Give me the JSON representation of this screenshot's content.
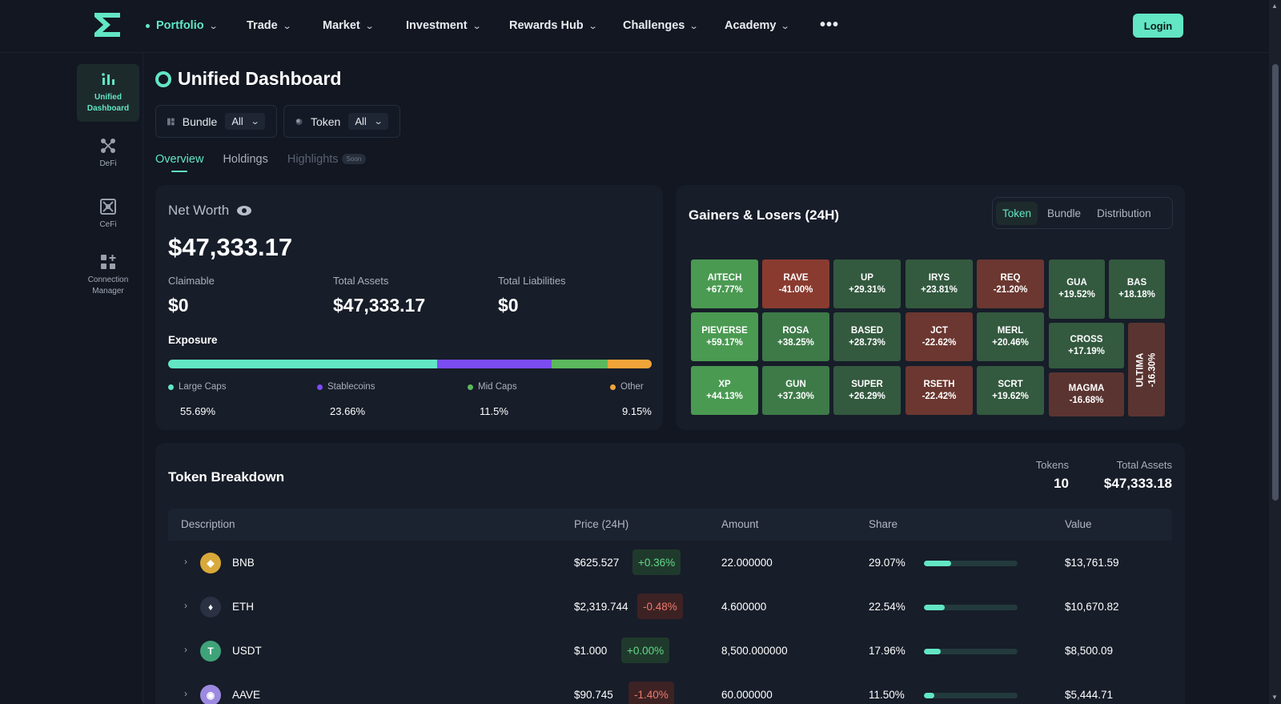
{
  "nav": {
    "items": [
      {
        "label": "Portfolio"
      },
      {
        "label": "Trade"
      },
      {
        "label": "Market"
      },
      {
        "label": "Investment"
      },
      {
        "label": "Rewards Hub"
      },
      {
        "label": "Challenges"
      },
      {
        "label": "Academy"
      }
    ],
    "more": "•••",
    "login": "Login",
    "chevron": "⌄"
  },
  "sidebar": {
    "items": [
      {
        "label": "Unified Dashboard",
        "icon": "bar-chart-icon"
      },
      {
        "label": "DeFi",
        "icon": "nodes-icon"
      },
      {
        "label": "CeFi",
        "icon": "exchange-icon"
      },
      {
        "label": "Connection Manager",
        "icon": "connection-icon"
      }
    ]
  },
  "page": {
    "title": "Unified Dashboard",
    "filters": [
      {
        "label": "Bundle",
        "value": "All"
      },
      {
        "label": "Token",
        "value": "All"
      }
    ],
    "tabs": [
      {
        "label": "Overview"
      },
      {
        "label": "Holdings"
      },
      {
        "label": "Highlights",
        "badge": "Soon"
      }
    ]
  },
  "networth": {
    "title": "Net Worth",
    "value": "$47,333.17",
    "claimable_label": "Claimable",
    "claimable": "$0",
    "assets_label": "Total Assets",
    "assets": "$47,333.17",
    "liabilities_label": "Total Liabilities",
    "liabilities": "$0",
    "exposure_title": "Exposure",
    "exposure": [
      {
        "label": "Large Caps",
        "pct": "55.69%",
        "value": 55.69,
        "color": "#62e6c4"
      },
      {
        "label": "Stablecoins",
        "pct": "23.66%",
        "value": 23.66,
        "color": "#7b4cf2"
      },
      {
        "label": "Mid Caps",
        "pct": "11.5%",
        "value": 11.5,
        "color": "#5cb85c"
      },
      {
        "label": "Other",
        "pct": "9.15%",
        "value": 9.15,
        "color": "#f0a43a"
      }
    ]
  },
  "gainers": {
    "title": "Gainers & Losers (24H)",
    "tabs": [
      "Token",
      "Bundle",
      "Distribution"
    ],
    "tiles": [
      {
        "name": "AITECH",
        "change": "+67.77%"
      },
      {
        "name": "RAVE",
        "change": "-41.00%"
      },
      {
        "name": "UP",
        "change": "+29.31%"
      },
      {
        "name": "IRYS",
        "change": "+23.81%"
      },
      {
        "name": "REQ",
        "change": "-21.20%"
      },
      {
        "name": "GUA",
        "change": "+19.52%"
      },
      {
        "name": "BAS",
        "change": "+18.18%"
      },
      {
        "name": "PIEVERSE",
        "change": "+59.17%"
      },
      {
        "name": "ROSA",
        "change": "+38.25%"
      },
      {
        "name": "BASED",
        "change": "+28.73%"
      },
      {
        "name": "JCT",
        "change": "-22.62%"
      },
      {
        "name": "MERL",
        "change": "+20.46%"
      },
      {
        "name": "CROSS",
        "change": "+17.19%"
      },
      {
        "name": "ULTIMA",
        "change": "-16.30%"
      },
      {
        "name": "XP",
        "change": "+44.13%"
      },
      {
        "name": "GUN",
        "change": "+37.30%"
      },
      {
        "name": "SUPER",
        "change": "+26.29%"
      },
      {
        "name": "RSETH",
        "change": "-22.42%"
      },
      {
        "name": "SCRT",
        "change": "+19.62%"
      },
      {
        "name": "MAGMA",
        "change": "-16.68%"
      }
    ]
  },
  "breakdown": {
    "title": "Token Breakdown",
    "tokens_label": "Tokens",
    "tokens": "10",
    "assets_label": "Total Assets",
    "assets": "$47,333.18",
    "columns": [
      "Description",
      "Price (24H)",
      "Amount",
      "Share",
      "Value"
    ],
    "rows": [
      {
        "symbol": "BNB",
        "price": "$625.527",
        "change": "+0.36%",
        "dir": "up",
        "amount": "22.000000",
        "share": "29.07%",
        "share_value": 29.07,
        "value": "$13,761.59",
        "coin_color": "#d9a93a",
        "glyph": "◆"
      },
      {
        "symbol": "ETH",
        "price": "$2,319.744",
        "change": "-0.48%",
        "dir": "down",
        "amount": "4.600000",
        "share": "22.54%",
        "share_value": 22.54,
        "value": "$10,670.82",
        "coin_color": "#2a3142",
        "glyph": "♦"
      },
      {
        "symbol": "USDT",
        "price": "$1.000",
        "change": "+0.00%",
        "dir": "up",
        "amount": "8,500.000000",
        "share": "17.96%",
        "share_value": 17.96,
        "value": "$8,500.09",
        "coin_color": "#3fa37a",
        "glyph": "T"
      },
      {
        "symbol": "AAVE",
        "price": "$90.745",
        "change": "-1.40%",
        "dir": "down",
        "amount": "60.000000",
        "share": "11.50%",
        "share_value": 11.5,
        "value": "$5,444.71",
        "coin_color": "#9c8ae0",
        "glyph": "◉"
      }
    ]
  }
}
